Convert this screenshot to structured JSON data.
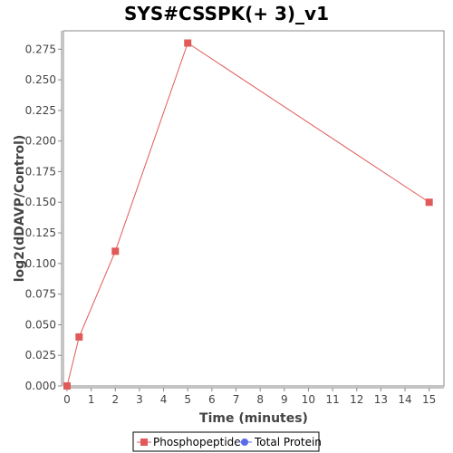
{
  "chart_data": {
    "type": "line",
    "title": "SYS#CSSPK(+ 3)_v1",
    "xlabel": "Time (minutes)",
    "ylabel": "log2(dDAVP/Control)",
    "xlim": [
      0,
      15.5
    ],
    "ylim": [
      0,
      0.29
    ],
    "x_ticks": [
      "0",
      "1",
      "2",
      "3",
      "4",
      "5",
      "6",
      "7",
      "8",
      "9",
      "10",
      "11",
      "12",
      "13",
      "14",
      "15"
    ],
    "y_ticks": [
      "0.000",
      "0.025",
      "0.050",
      "0.075",
      "0.100",
      "0.125",
      "0.150",
      "0.175",
      "0.200",
      "0.225",
      "0.250",
      "0.275"
    ],
    "grid": false,
    "legend_position": "bottom",
    "series": [
      {
        "name": "Phosphopeptide",
        "color": "#e05a5a",
        "marker": "square",
        "points": [
          {
            "x": 0,
            "y": 0.0
          },
          {
            "x": 0.5,
            "y": 0.04
          },
          {
            "x": 2,
            "y": 0.11
          },
          {
            "x": 5,
            "y": 0.28
          },
          {
            "x": 15,
            "y": 0.15
          }
        ]
      },
      {
        "name": "Total Protein",
        "color": "#5a6bea",
        "marker": "circle",
        "points": []
      }
    ]
  }
}
